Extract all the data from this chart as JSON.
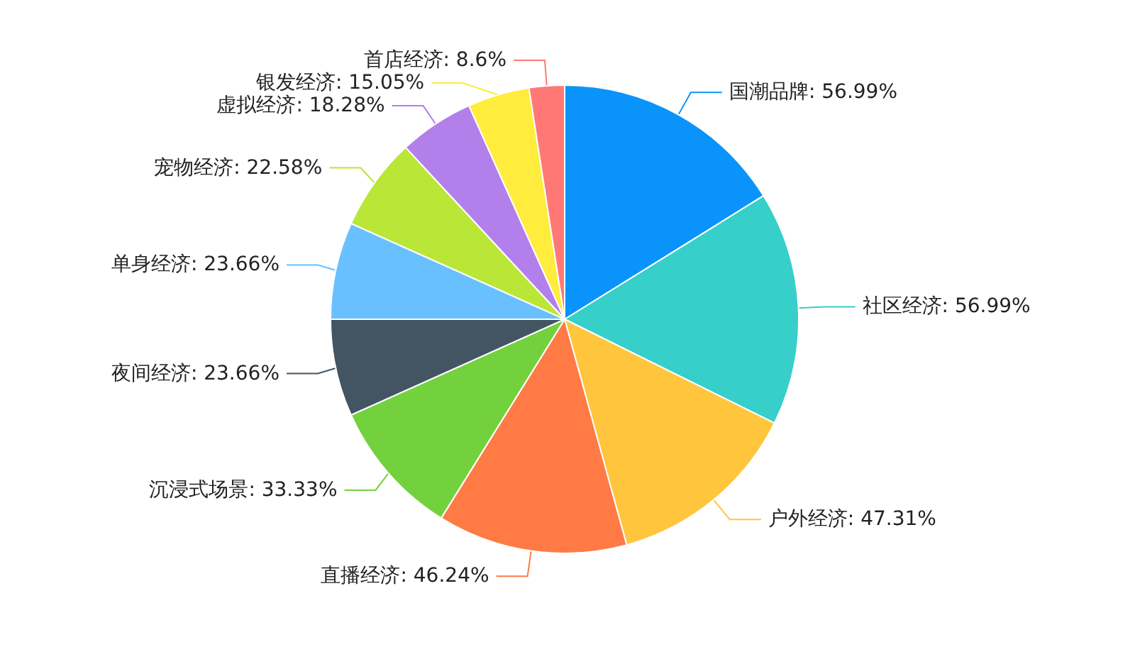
{
  "chart_data": {
    "type": "pie",
    "categories": [
      "国潮品牌",
      "社区经济",
      "户外经济",
      "直播经济",
      "沉浸式场景",
      "夜间经济",
      "单身经济",
      "宠物经济",
      "虚拟经济",
      "银发经济",
      "首店经济"
    ],
    "values": [
      56.99,
      56.99,
      47.31,
      46.24,
      33.33,
      23.66,
      23.66,
      22.58,
      18.28,
      15.05,
      8.6
    ],
    "value_labels": [
      "56.99%",
      "56.99%",
      "47.31%",
      "46.24%",
      "33.33%",
      "23.66%",
      "23.66%",
      "22.58%",
      "18.28%",
      "15.05%",
      "8.6%"
    ],
    "colors": [
      "#0a94fb",
      "#36cfc9",
      "#ffc53d",
      "#ff7a45",
      "#73d13d",
      "#435563",
      "#69c0ff",
      "#bae637",
      "#b37feb",
      "#ffec3d",
      "#ff7875"
    ],
    "legend": false
  }
}
